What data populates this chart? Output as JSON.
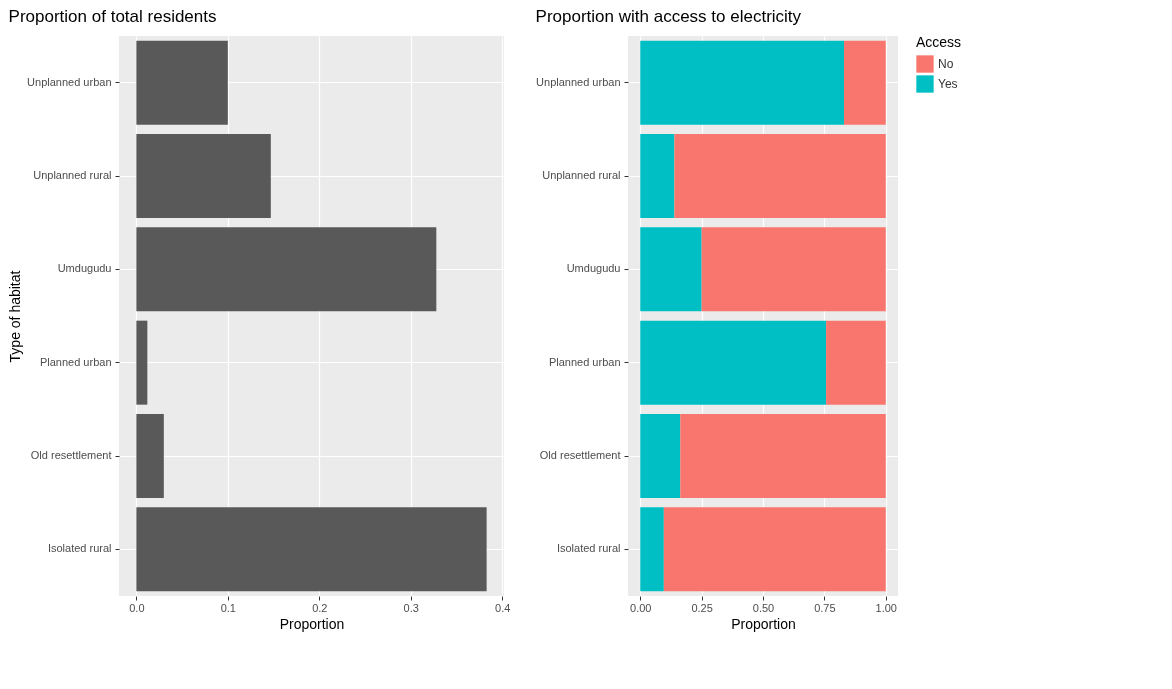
{
  "chart_data": [
    {
      "type": "bar",
      "orientation": "horizontal",
      "title": "Proportion of total residents",
      "xlabel": "Proportion",
      "ylabel": "Type of habitat",
      "categories": [
        "Unplanned urban",
        "Unplanned rural",
        "Umdugudu",
        "Planned urban",
        "Old resettlement",
        "Isolated rural"
      ],
      "series": [
        {
          "color": "#595959",
          "values": [
            0.1,
            0.147,
            0.328,
            0.012,
            0.03,
            0.383
          ]
        }
      ],
      "xlim": [
        -0.019,
        0.402
      ],
      "xticks": [
        {
          "value": 0,
          "label": "0.0"
        },
        {
          "value": 0.1,
          "label": "0.1"
        },
        {
          "value": 0.2,
          "label": "0.2"
        },
        {
          "value": 0.3,
          "label": "0.3"
        },
        {
          "value": 0.4,
          "label": "0.4"
        }
      ],
      "grid": true
    },
    {
      "type": "bar",
      "orientation": "horizontal",
      "stacked": true,
      "title": "Proportion with access to electricity",
      "xlabel": "Proportion",
      "legend_title": "Access",
      "categories": [
        "Unplanned urban",
        "Unplanned rural",
        "Umdugudu",
        "Planned urban",
        "Old resettlement",
        "Isolated rural"
      ],
      "series": [
        {
          "name": "Yes",
          "color": "#00bfc4",
          "values": [
            0.83,
            0.139,
            0.25,
            0.757,
            0.163,
            0.096
          ]
        },
        {
          "name": "No",
          "color": "#f8766d",
          "values": [
            0.17,
            0.861,
            0.75,
            0.243,
            0.837,
            0.904
          ]
        }
      ],
      "xlim": [
        -0.05,
        1.05
      ],
      "xticks": [
        {
          "value": 0,
          "label": "0.00"
        },
        {
          "value": 0.25,
          "label": "0.25"
        },
        {
          "value": 0.5,
          "label": "0.50"
        },
        {
          "value": 0.75,
          "label": "0.75"
        },
        {
          "value": 1,
          "label": "1.00"
        }
      ],
      "grid": true,
      "legend": "right"
    }
  ]
}
